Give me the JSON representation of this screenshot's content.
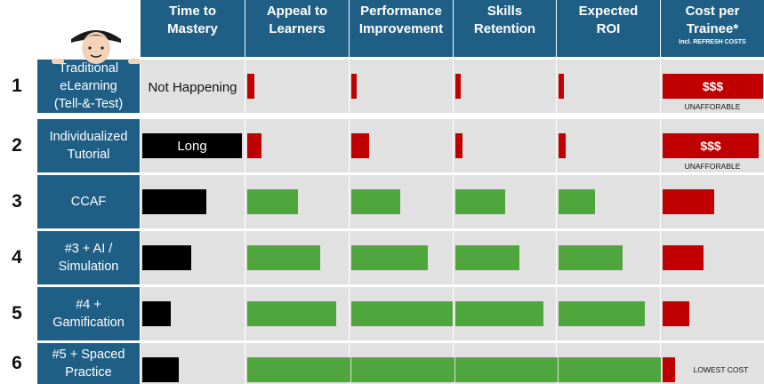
{
  "headers": {
    "mastery": [
      "Time to",
      "Mastery"
    ],
    "appeal": [
      "Appeal to",
      "Learners"
    ],
    "performance": [
      "Performance",
      "Improvement"
    ],
    "skills": [
      "Skills",
      "Retention"
    ],
    "roi": [
      "Expected",
      "ROI"
    ],
    "cost": [
      "Cost per",
      "Trainee*"
    ],
    "cost_sub": "Incl. REFRESH COSTS"
  },
  "rows": [
    {
      "num": "1",
      "label": [
        "Traditional",
        "eLearning",
        "(Tell-&-Test)"
      ]
    },
    {
      "num": "2",
      "label": [
        "Individualized",
        "Tutorial"
      ]
    },
    {
      "num": "3",
      "label": [
        "CCAF"
      ]
    },
    {
      "num": "4",
      "label": [
        "#3 + AI /",
        "Simulation"
      ]
    },
    {
      "num": "5",
      "label": [
        "#4 +",
        "Gamification"
      ]
    },
    {
      "num": "6",
      "label": [
        "#5 + Spaced",
        "Practice"
      ]
    }
  ],
  "colors": {
    "header": "#1f5f86",
    "good": "#4ea63c",
    "bad": "#c00000",
    "mastery": "#000000",
    "row_bg": "#e1e1e1"
  },
  "chart_data": {
    "type": "bar",
    "categories": [
      "Traditional eLearning (Tell-&-Test)",
      "Individualized Tutorial",
      "CCAF",
      "#3 + AI / Simulation",
      "#4 + Gamification",
      "#5 + Spaced Practice"
    ],
    "mastery": {
      "values": [
        null,
        0.97,
        0.63,
        0.48,
        0.28,
        0.36
      ],
      "labels": [
        "Not Happening",
        "Long",
        "",
        "",
        "",
        ""
      ]
    },
    "appeal": {
      "values": [
        0.07,
        0.14,
        0.49,
        0.71,
        0.86,
        1.0
      ],
      "colors": [
        "bad",
        "bad",
        "good",
        "good",
        "good",
        "good"
      ]
    },
    "performance": {
      "values": [
        0.03,
        0.17,
        0.47,
        0.74,
        0.98,
        1.0
      ],
      "colors": [
        "bad",
        "bad",
        "good",
        "good",
        "good",
        "good"
      ]
    },
    "skills": {
      "values": [
        0.03,
        0.07,
        0.49,
        0.63,
        0.86,
        1.0
      ],
      "colors": [
        "bad",
        "bad",
        "good",
        "good",
        "good",
        "good"
      ]
    },
    "roi": {
      "values": [
        0.03,
        0.07,
        0.35,
        0.62,
        0.84,
        0.99
      ],
      "colors": [
        "bad",
        "bad",
        "good",
        "good",
        "good",
        "good"
      ]
    },
    "cost": {
      "values": [
        0.99,
        0.95,
        0.51,
        0.4,
        0.26,
        0.12
      ],
      "bar_text": [
        "$$$",
        "$$$",
        "",
        "",
        "",
        ""
      ],
      "notes": [
        "UNAFFORABLE",
        "UNAFFORABLE",
        "",
        "",
        "",
        "LOWEST COST"
      ]
    }
  }
}
